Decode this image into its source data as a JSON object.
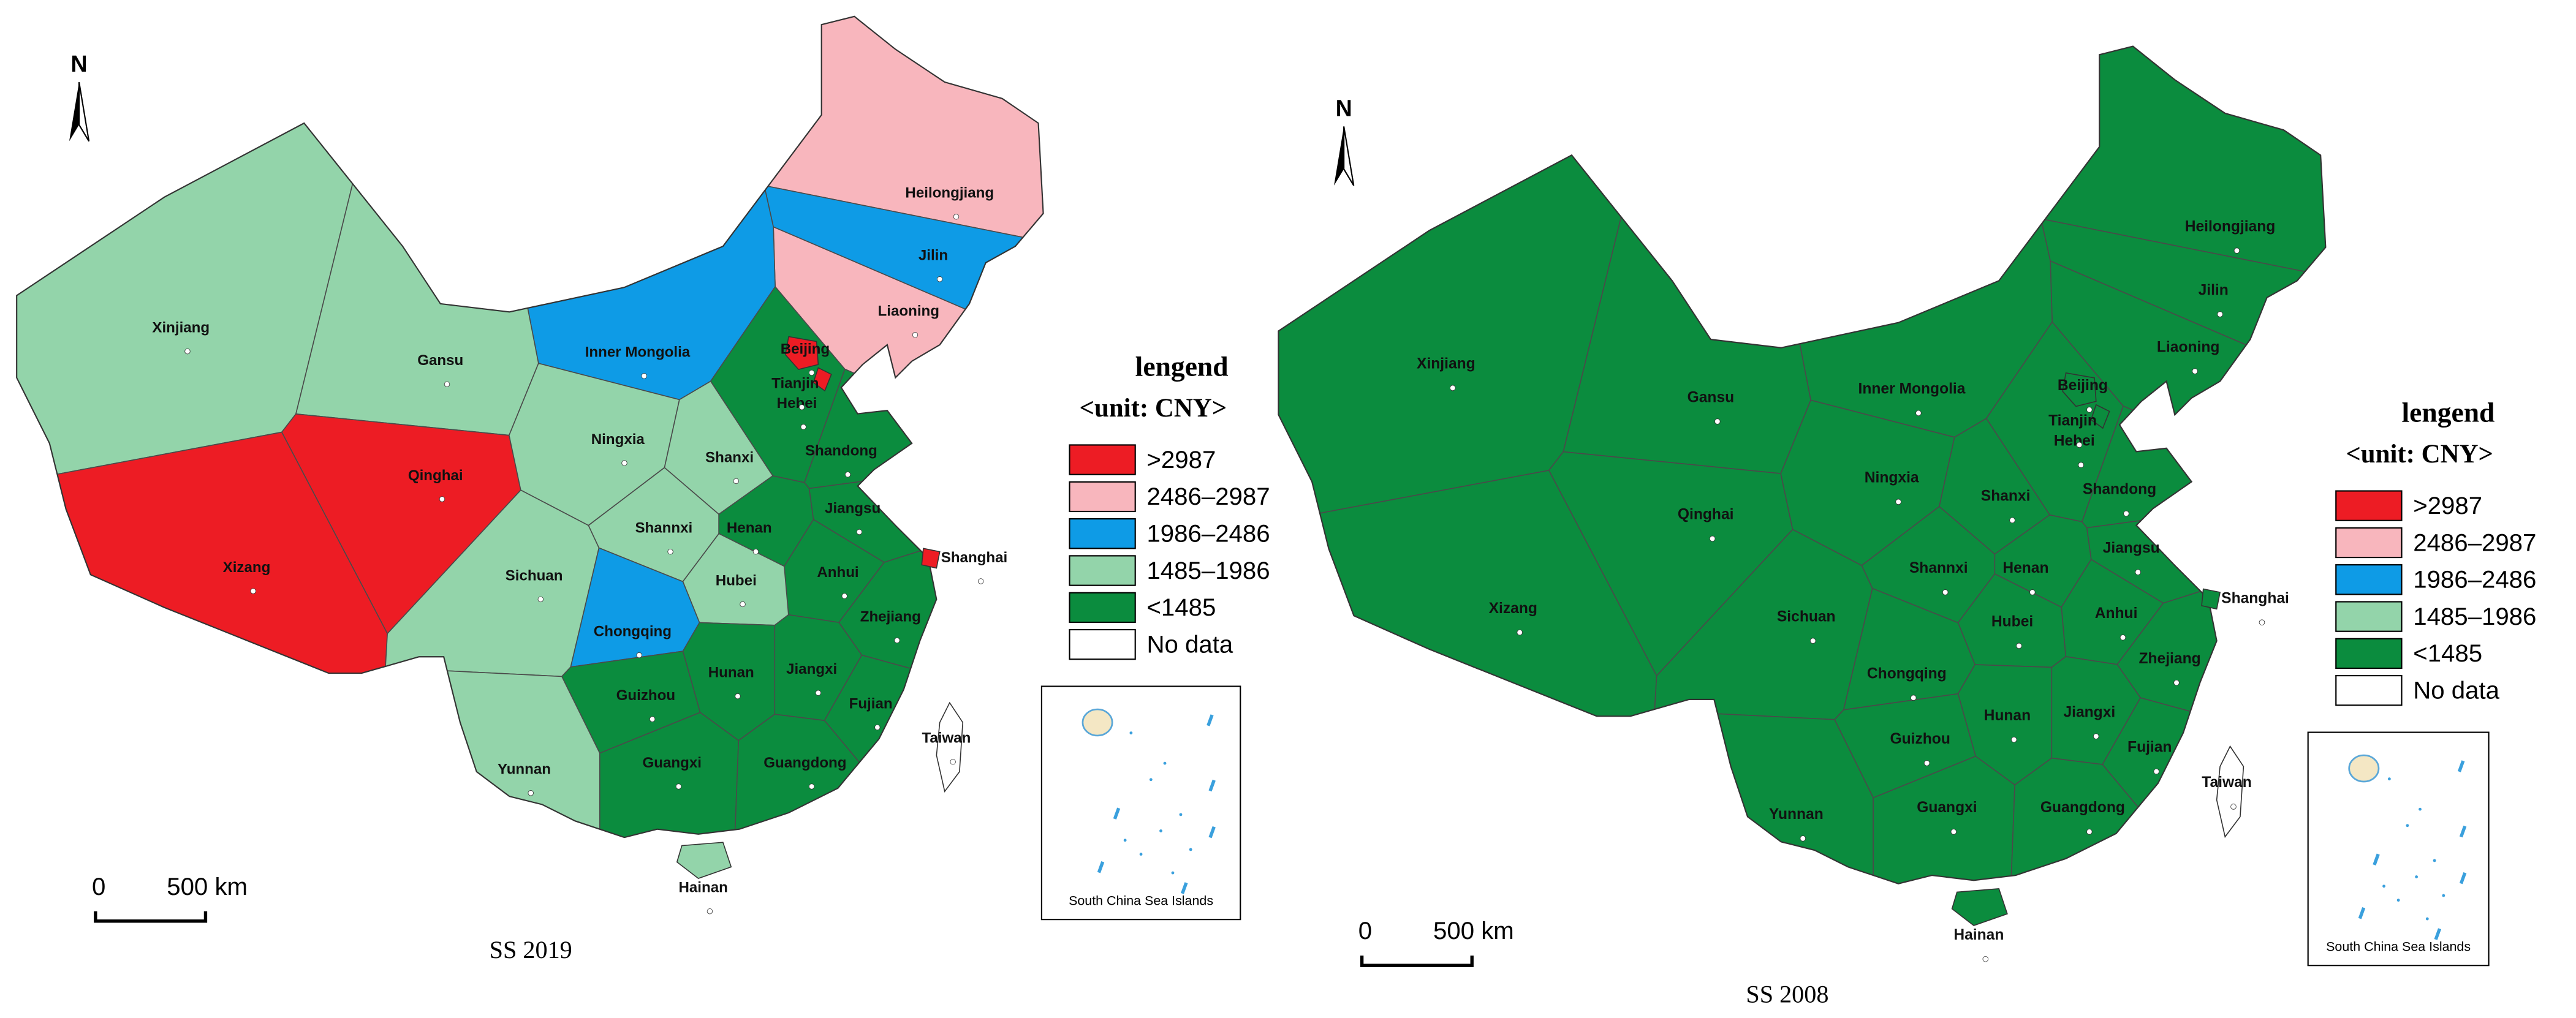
{
  "maps": [
    {
      "caption": "SS 2019",
      "north": "N",
      "scale": [
        "0",
        "500 km"
      ],
      "inset": "South China Sea Islands",
      "legend": {
        "title": "lengend",
        "unit": "<unit: CNY>",
        "items": [
          {
            "label": ">2987",
            "color": "#ed1c24"
          },
          {
            "label": "2486–2987",
            "color": "#f8b6bd"
          },
          {
            "label": "1986–2486",
            "color": "#0e9be6"
          },
          {
            "label": "1485–1986",
            "color": "#93d4aa"
          },
          {
            "label": "<1485",
            "color": "#0b8c3e"
          },
          {
            "label": "No data",
            "color": "#ffffff"
          }
        ]
      },
      "provinces": [
        {
          "name": "Heilongjiang",
          "class": "2486–2987"
        },
        {
          "name": "Jilin",
          "class": "1986–2486"
        },
        {
          "name": "Liaoning",
          "class": "2486–2987"
        },
        {
          "name": "Inner Mongolia",
          "class": "1986–2486"
        },
        {
          "name": "Hebei",
          "class": "<1485"
        },
        {
          "name": "Xinjiang",
          "class": "1485–1986"
        },
        {
          "name": "Gansu",
          "class": "1485–1986"
        },
        {
          "name": "Qinghai",
          "class": ">2987"
        },
        {
          "name": "Xizang",
          "class": ">2987"
        },
        {
          "name": "Ningxia",
          "class": "1485–1986"
        },
        {
          "name": "Shanxi",
          "class": "1485–1986"
        },
        {
          "name": "Shandong",
          "class": "<1485"
        },
        {
          "name": "Shannxi",
          "class": "1485–1986"
        },
        {
          "name": "Henan",
          "class": "<1485"
        },
        {
          "name": "Jiangsu",
          "class": "<1485"
        },
        {
          "name": "Anhui",
          "class": "<1485"
        },
        {
          "name": "Hubei",
          "class": "1485–1986"
        },
        {
          "name": "Sichuan",
          "class": "1485–1986"
        },
        {
          "name": "Chongqing",
          "class": "1986–2486"
        },
        {
          "name": "Zhejiang",
          "class": "<1485"
        },
        {
          "name": "Hunan",
          "class": "<1485"
        },
        {
          "name": "Jiangxi",
          "class": "<1485"
        },
        {
          "name": "Guizhou",
          "class": "<1485"
        },
        {
          "name": "Fujian",
          "class": "<1485"
        },
        {
          "name": "Yunnan",
          "class": "1485–1986"
        },
        {
          "name": "Guangxi",
          "class": "<1485"
        },
        {
          "name": "Guangdong",
          "class": "<1485"
        },
        {
          "name": "Beijing",
          "class": ">2987"
        },
        {
          "name": "Tianjin",
          "class": ">2987"
        },
        {
          "name": "Shanghai",
          "class": ">2987"
        },
        {
          "name": "Hainan",
          "class": "1485–1986"
        },
        {
          "name": "Taiwan",
          "class": "No data"
        }
      ]
    },
    {
      "caption": "SS 2008",
      "north": "N",
      "scale": [
        "0",
        "500 km"
      ],
      "inset": "South China Sea Islands",
      "legend": {
        "title": "lengend",
        "unit": "<unit: CNY>",
        "items": [
          {
            "label": ">2987",
            "color": "#ed1c24"
          },
          {
            "label": "2486–2987",
            "color": "#f8b6bd"
          },
          {
            "label": "1986–2486",
            "color": "#0e9be6"
          },
          {
            "label": "1485–1986",
            "color": "#93d4aa"
          },
          {
            "label": "<1485",
            "color": "#0b8c3e"
          },
          {
            "label": "No data",
            "color": "#ffffff"
          }
        ]
      },
      "provinces": [
        {
          "name": "Heilongjiang",
          "class": "<1485"
        },
        {
          "name": "Jilin",
          "class": "<1485"
        },
        {
          "name": "Liaoning",
          "class": "<1485"
        },
        {
          "name": "Inner Mongolia",
          "class": "<1485"
        },
        {
          "name": "Hebei",
          "class": "<1485"
        },
        {
          "name": "Xinjiang",
          "class": "<1485"
        },
        {
          "name": "Gansu",
          "class": "<1485"
        },
        {
          "name": "Qinghai",
          "class": "<1485"
        },
        {
          "name": "Xizang",
          "class": "<1485"
        },
        {
          "name": "Ningxia",
          "class": "<1485"
        },
        {
          "name": "Shanxi",
          "class": "<1485"
        },
        {
          "name": "Shandong",
          "class": "<1485"
        },
        {
          "name": "Shannxi",
          "class": "<1485"
        },
        {
          "name": "Henan",
          "class": "<1485"
        },
        {
          "name": "Jiangsu",
          "class": "<1485"
        },
        {
          "name": "Anhui",
          "class": "<1485"
        },
        {
          "name": "Hubei",
          "class": "<1485"
        },
        {
          "name": "Sichuan",
          "class": "<1485"
        },
        {
          "name": "Chongqing",
          "class": "<1485"
        },
        {
          "name": "Zhejiang",
          "class": "<1485"
        },
        {
          "name": "Hunan",
          "class": "<1485"
        },
        {
          "name": "Jiangxi",
          "class": "<1485"
        },
        {
          "name": "Guizhou",
          "class": "<1485"
        },
        {
          "name": "Fujian",
          "class": "<1485"
        },
        {
          "name": "Yunnan",
          "class": "<1485"
        },
        {
          "name": "Guangxi",
          "class": "<1485"
        },
        {
          "name": "Guangdong",
          "class": "<1485"
        },
        {
          "name": "Beijing",
          "class": "<1485"
        },
        {
          "name": "Tianjin",
          "class": "<1485"
        },
        {
          "name": "Shanghai",
          "class": "<1485"
        },
        {
          "name": "Hainan",
          "class": "<1485"
        },
        {
          "name": "Taiwan",
          "class": "No data"
        }
      ]
    }
  ]
}
